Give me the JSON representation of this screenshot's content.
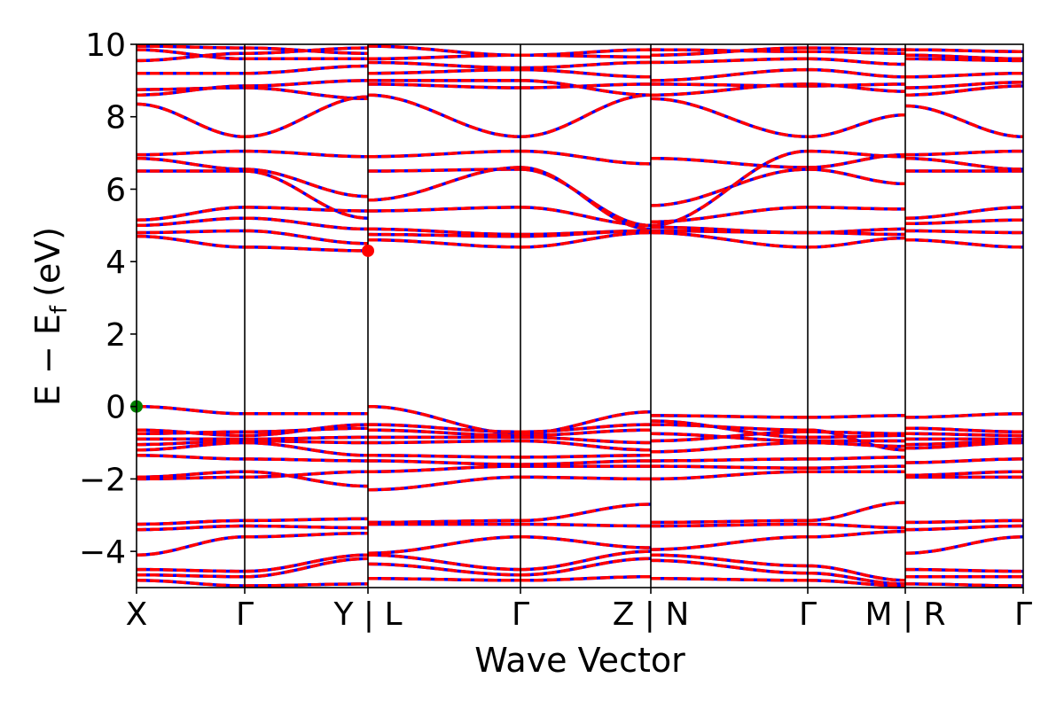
{
  "chart_data": {
    "type": "line",
    "title": "",
    "xlabel": "Wave Vector",
    "ylabel": "E − E",
    "ylabel_subscript": "f",
    "ylabel_unit": "(eV)",
    "ylim": [
      -5,
      10
    ],
    "yticks": [
      -4,
      -2,
      0,
      2,
      4,
      6,
      8,
      10
    ],
    "ytick_labels": [
      "−4",
      "−2",
      "0",
      "2",
      "4",
      "6",
      "8",
      "10"
    ],
    "xlim": [
      0,
      1
    ],
    "kpoints": [
      {
        "x": 0.0,
        "label": "X"
      },
      {
        "x": 0.122,
        "label": "Γ"
      },
      {
        "x": 0.261,
        "label": "Y | L"
      },
      {
        "x": 0.433,
        "label": "Γ"
      },
      {
        "x": 0.58,
        "label": "Z | N"
      },
      {
        "x": 0.757,
        "label": "Γ"
      },
      {
        "x": 0.867,
        "label": "M | R"
      },
      {
        "x": 1.0,
        "label": "Γ"
      }
    ],
    "series_styles": [
      {
        "style": "solid",
        "color": "#0000ff"
      },
      {
        "style": "dashed",
        "color": "#ff0000"
      }
    ],
    "markers": [
      {
        "name": "vbm",
        "x": 0.0,
        "y": 0.0,
        "color": "#008000"
      },
      {
        "name": "cbm",
        "x": 0.261,
        "y": 4.3,
        "color": "#ff0000"
      }
    ],
    "segments": [
      {
        "x0": 0.0,
        "x1": 0.122,
        "bands": [
          [
            9.95,
            9.9
          ],
          [
            9.85,
            9.6
          ],
          [
            9.55,
            9.75
          ],
          [
            9.2,
            9.2
          ],
          [
            8.75,
            8.8
          ],
          [
            8.6,
            8.85
          ],
          [
            8.35,
            7.45
          ],
          [
            6.95,
            7.05
          ],
          [
            6.85,
            6.55
          ],
          [
            6.5,
            6.5
          ],
          [
            5.15,
            5.5
          ],
          [
            5.0,
            5.2
          ],
          [
            4.8,
            4.85
          ],
          [
            4.7,
            4.4
          ],
          [
            0.0,
            -0.2
          ],
          [
            -0.65,
            -0.8
          ],
          [
            -0.75,
            -0.7
          ],
          [
            -0.9,
            -0.9
          ],
          [
            -1.05,
            -0.95
          ],
          [
            -1.2,
            -1.0
          ],
          [
            -1.35,
            -1.45
          ],
          [
            -1.95,
            -1.8
          ],
          [
            -2.0,
            -1.95
          ],
          [
            -3.25,
            -3.15
          ],
          [
            -3.4,
            -3.3
          ],
          [
            -4.1,
            -3.6
          ],
          [
            -4.5,
            -4.55
          ],
          [
            -4.65,
            -4.7
          ],
          [
            -4.8,
            -4.95
          ]
        ]
      },
      {
        "x0": 0.122,
        "x1": 0.261,
        "bands": [
          [
            9.9,
            9.75
          ],
          [
            9.6,
            9.6
          ],
          [
            9.75,
            9.9
          ],
          [
            9.2,
            9.4
          ],
          [
            8.8,
            8.5
          ],
          [
            8.85,
            9.0
          ],
          [
            7.45,
            8.55
          ],
          [
            7.05,
            6.9
          ],
          [
            6.55,
            5.8
          ],
          [
            6.5,
            5.2
          ],
          [
            5.5,
            5.4
          ],
          [
            5.2,
            4.9
          ],
          [
            4.85,
            4.5
          ],
          [
            4.4,
            4.3
          ],
          [
            -0.2,
            -0.2
          ],
          [
            -0.8,
            -0.5
          ],
          [
            -0.7,
            -0.6
          ],
          [
            -0.9,
            -0.85
          ],
          [
            -0.95,
            -1.0
          ],
          [
            -1.0,
            -1.35
          ],
          [
            -1.45,
            -1.5
          ],
          [
            -1.8,
            -2.2
          ],
          [
            -1.95,
            -1.8
          ],
          [
            -3.15,
            -3.1
          ],
          [
            -3.3,
            -3.35
          ],
          [
            -3.6,
            -3.5
          ],
          [
            -4.55,
            -4.1
          ],
          [
            -4.7,
            -4.2
          ],
          [
            -4.95,
            -4.9
          ]
        ]
      },
      {
        "x0": 0.261,
        "x1": 0.433,
        "bands": [
          [
            9.95,
            9.7
          ],
          [
            9.6,
            9.7
          ],
          [
            9.5,
            9.35
          ],
          [
            9.2,
            9.3
          ],
          [
            8.9,
            8.8
          ],
          [
            9.0,
            9.0
          ],
          [
            8.6,
            7.45
          ],
          [
            6.9,
            7.05
          ],
          [
            6.5,
            6.55
          ],
          [
            5.7,
            6.6
          ],
          [
            5.4,
            5.5
          ],
          [
            4.9,
            4.75
          ],
          [
            4.75,
            4.7
          ],
          [
            4.6,
            4.4
          ],
          [
            0.0,
            -0.75
          ],
          [
            -0.5,
            -0.7
          ],
          [
            -0.65,
            -0.8
          ],
          [
            -0.85,
            -0.85
          ],
          [
            -1.0,
            -0.95
          ],
          [
            -1.35,
            -1.4
          ],
          [
            -1.5,
            -1.6
          ],
          [
            -1.8,
            -1.65
          ],
          [
            -2.3,
            -1.95
          ],
          [
            -3.2,
            -3.15
          ],
          [
            -3.25,
            -3.25
          ],
          [
            -4.05,
            -3.6
          ],
          [
            -4.1,
            -4.5
          ],
          [
            -4.35,
            -4.65
          ],
          [
            -4.75,
            -4.8
          ]
        ]
      },
      {
        "x0": 0.433,
        "x1": 0.58,
        "bands": [
          [
            9.7,
            9.85
          ],
          [
            9.7,
            9.65
          ],
          [
            9.35,
            9.5
          ],
          [
            9.3,
            9.1
          ],
          [
            8.8,
            8.9
          ],
          [
            9.0,
            8.6
          ],
          [
            7.45,
            8.6
          ],
          [
            7.05,
            6.7
          ],
          [
            6.55,
            5.0
          ],
          [
            6.6,
            4.9
          ],
          [
            5.5,
            5.0
          ],
          [
            4.75,
            4.85
          ],
          [
            4.7,
            4.85
          ],
          [
            4.4,
            4.8
          ],
          [
            -0.75,
            -0.15
          ],
          [
            -0.7,
            -0.5
          ],
          [
            -0.8,
            -0.65
          ],
          [
            -0.85,
            -1.0
          ],
          [
            -0.95,
            -1.2
          ],
          [
            -1.4,
            -1.35
          ],
          [
            -1.6,
            -1.5
          ],
          [
            -1.65,
            -1.65
          ],
          [
            -1.95,
            -2.0
          ],
          [
            -3.15,
            -2.7
          ],
          [
            -3.25,
            -3.3
          ],
          [
            -3.6,
            -3.9
          ],
          [
            -4.5,
            -4.0
          ],
          [
            -4.65,
            -4.2
          ],
          [
            -4.8,
            -4.7
          ]
        ]
      },
      {
        "x0": 0.58,
        "x1": 0.757,
        "bands": [
          [
            9.85,
            9.8
          ],
          [
            9.7,
            9.9
          ],
          [
            9.5,
            9.6
          ],
          [
            9.0,
            9.3
          ],
          [
            8.9,
            8.85
          ],
          [
            8.6,
            8.9
          ],
          [
            8.5,
            7.45
          ],
          [
            6.85,
            6.6
          ],
          [
            5.55,
            6.55
          ],
          [
            5.0,
            7.05
          ],
          [
            5.1,
            5.5
          ],
          [
            4.95,
            4.8
          ],
          [
            4.85,
            4.8
          ],
          [
            4.8,
            4.4
          ],
          [
            -0.25,
            -0.3
          ],
          [
            -0.4,
            -0.85
          ],
          [
            -0.5,
            -0.65
          ],
          [
            -0.75,
            -0.95
          ],
          [
            -0.95,
            -0.7
          ],
          [
            -1.25,
            -1.0
          ],
          [
            -1.5,
            -1.45
          ],
          [
            -1.65,
            -1.7
          ],
          [
            -2.0,
            -1.8
          ],
          [
            -3.2,
            -3.15
          ],
          [
            -3.3,
            -3.25
          ],
          [
            -3.95,
            -3.6
          ],
          [
            -4.1,
            -4.4
          ],
          [
            -4.25,
            -4.6
          ],
          [
            -4.75,
            -4.8
          ]
        ]
      },
      {
        "x0": 0.757,
        "x1": 0.867,
        "bands": [
          [
            9.8,
            9.75
          ],
          [
            9.9,
            9.85
          ],
          [
            9.6,
            9.45
          ],
          [
            9.3,
            9.1
          ],
          [
            8.85,
            8.9
          ],
          [
            8.9,
            8.7
          ],
          [
            7.45,
            8.05
          ],
          [
            6.6,
            6.95
          ],
          [
            6.55,
            6.15
          ],
          [
            7.05,
            6.9
          ],
          [
            5.5,
            5.45
          ],
          [
            4.8,
            4.9
          ],
          [
            4.8,
            4.75
          ],
          [
            4.4,
            4.65
          ],
          [
            -0.3,
            -0.25
          ],
          [
            -0.85,
            -0.8
          ],
          [
            -0.65,
            -1.2
          ],
          [
            -0.95,
            -0.95
          ],
          [
            -0.7,
            -0.75
          ],
          [
            -1.0,
            -1.1
          ],
          [
            -1.45,
            -1.4
          ],
          [
            -1.7,
            -1.65
          ],
          [
            -1.8,
            -1.8
          ],
          [
            -3.15,
            -2.65
          ],
          [
            -3.25,
            -3.35
          ],
          [
            -3.6,
            -3.45
          ],
          [
            -4.4,
            -4.8
          ],
          [
            -4.6,
            -4.9
          ],
          [
            -4.8,
            -4.95
          ]
        ]
      },
      {
        "x0": 0.867,
        "x1": 1.0,
        "bands": [
          [
            9.85,
            9.8
          ],
          [
            9.7,
            9.6
          ],
          [
            9.6,
            9.55
          ],
          [
            9.1,
            9.2
          ],
          [
            8.8,
            8.95
          ],
          [
            8.6,
            8.85
          ],
          [
            8.3,
            7.45
          ],
          [
            6.95,
            7.05
          ],
          [
            6.85,
            6.55
          ],
          [
            6.5,
            6.5
          ],
          [
            5.2,
            5.5
          ],
          [
            5.05,
            5.15
          ],
          [
            4.85,
            4.8
          ],
          [
            4.6,
            4.4
          ],
          [
            -0.3,
            -0.2
          ],
          [
            -0.6,
            -0.7
          ],
          [
            -0.75,
            -0.8
          ],
          [
            -0.9,
            -0.9
          ],
          [
            -1.05,
            -0.95
          ],
          [
            -1.15,
            -1.0
          ],
          [
            -1.55,
            -1.45
          ],
          [
            -1.9,
            -1.8
          ],
          [
            -1.95,
            -1.95
          ],
          [
            -3.2,
            -3.15
          ],
          [
            -3.4,
            -3.3
          ],
          [
            -4.05,
            -3.6
          ],
          [
            -4.5,
            -4.55
          ],
          [
            -4.7,
            -4.7
          ],
          [
            -4.9,
            -4.95
          ]
        ]
      }
    ]
  }
}
